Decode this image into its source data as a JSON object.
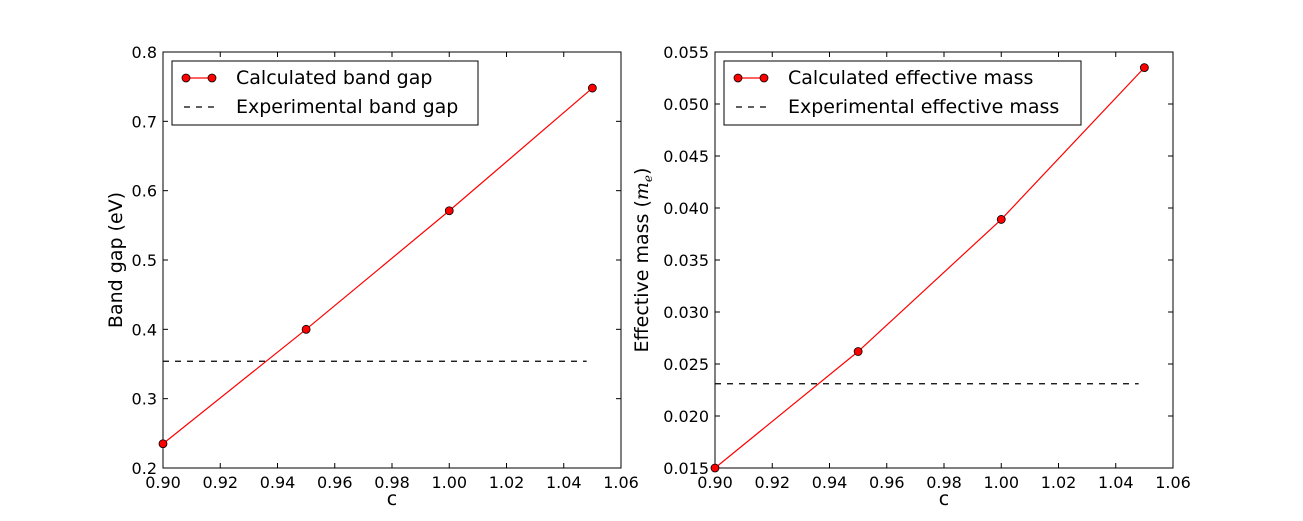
{
  "chart_data": [
    {
      "type": "line",
      "xlabel": "c",
      "ylabel": "Band gap  (eV)",
      "xlim": [
        0.9,
        1.06
      ],
      "ylim": [
        0.2,
        0.8
      ],
      "xticks": [
        "0.90",
        "0.92",
        "0.94",
        "0.96",
        "0.98",
        "1.00",
        "1.02",
        "1.04",
        "1.06"
      ],
      "yticks": [
        "0.2",
        "0.3",
        "0.4",
        "0.5",
        "0.6",
        "0.7",
        "0.8"
      ],
      "grid": false,
      "legend_position": "top-left",
      "series": [
        {
          "name": "Calculated band gap",
          "style": "solid-with-markers",
          "color": "#ff0000",
          "x": [
            0.9,
            0.95,
            1.0,
            1.05
          ],
          "y": [
            0.235,
            0.4,
            0.571,
            0.748
          ]
        },
        {
          "name": "Experimental band gap",
          "style": "dashed",
          "color": "#000000",
          "x": [
            0.9,
            1.048
          ],
          "y": [
            0.354,
            0.354
          ]
        }
      ]
    },
    {
      "type": "line",
      "xlabel": "c",
      "ylabel": "Effective mass  (",
      "ylabel_math": "m",
      "ylabel_sub": "e",
      "ylabel_close": ")",
      "xlim": [
        0.9,
        1.06
      ],
      "ylim": [
        0.015,
        0.055
      ],
      "xticks": [
        "0.90",
        "0.92",
        "0.94",
        "0.96",
        "0.98",
        "1.00",
        "1.02",
        "1.04",
        "1.06"
      ],
      "yticks": [
        "0.015",
        "0.020",
        "0.025",
        "0.030",
        "0.035",
        "0.040",
        "0.045",
        "0.050",
        "0.055"
      ],
      "grid": false,
      "legend_position": "top-left",
      "series": [
        {
          "name": "Calculated effective mass",
          "style": "solid-with-markers",
          "color": "#ff0000",
          "x": [
            0.9,
            0.95,
            1.0,
            1.05
          ],
          "y": [
            0.015,
            0.0262,
            0.0389,
            0.0535
          ]
        },
        {
          "name": "Experimental effective mass",
          "style": "dashed",
          "color": "#000000",
          "x": [
            0.9,
            1.048
          ],
          "y": [
            0.0231,
            0.0231
          ]
        }
      ]
    }
  ]
}
